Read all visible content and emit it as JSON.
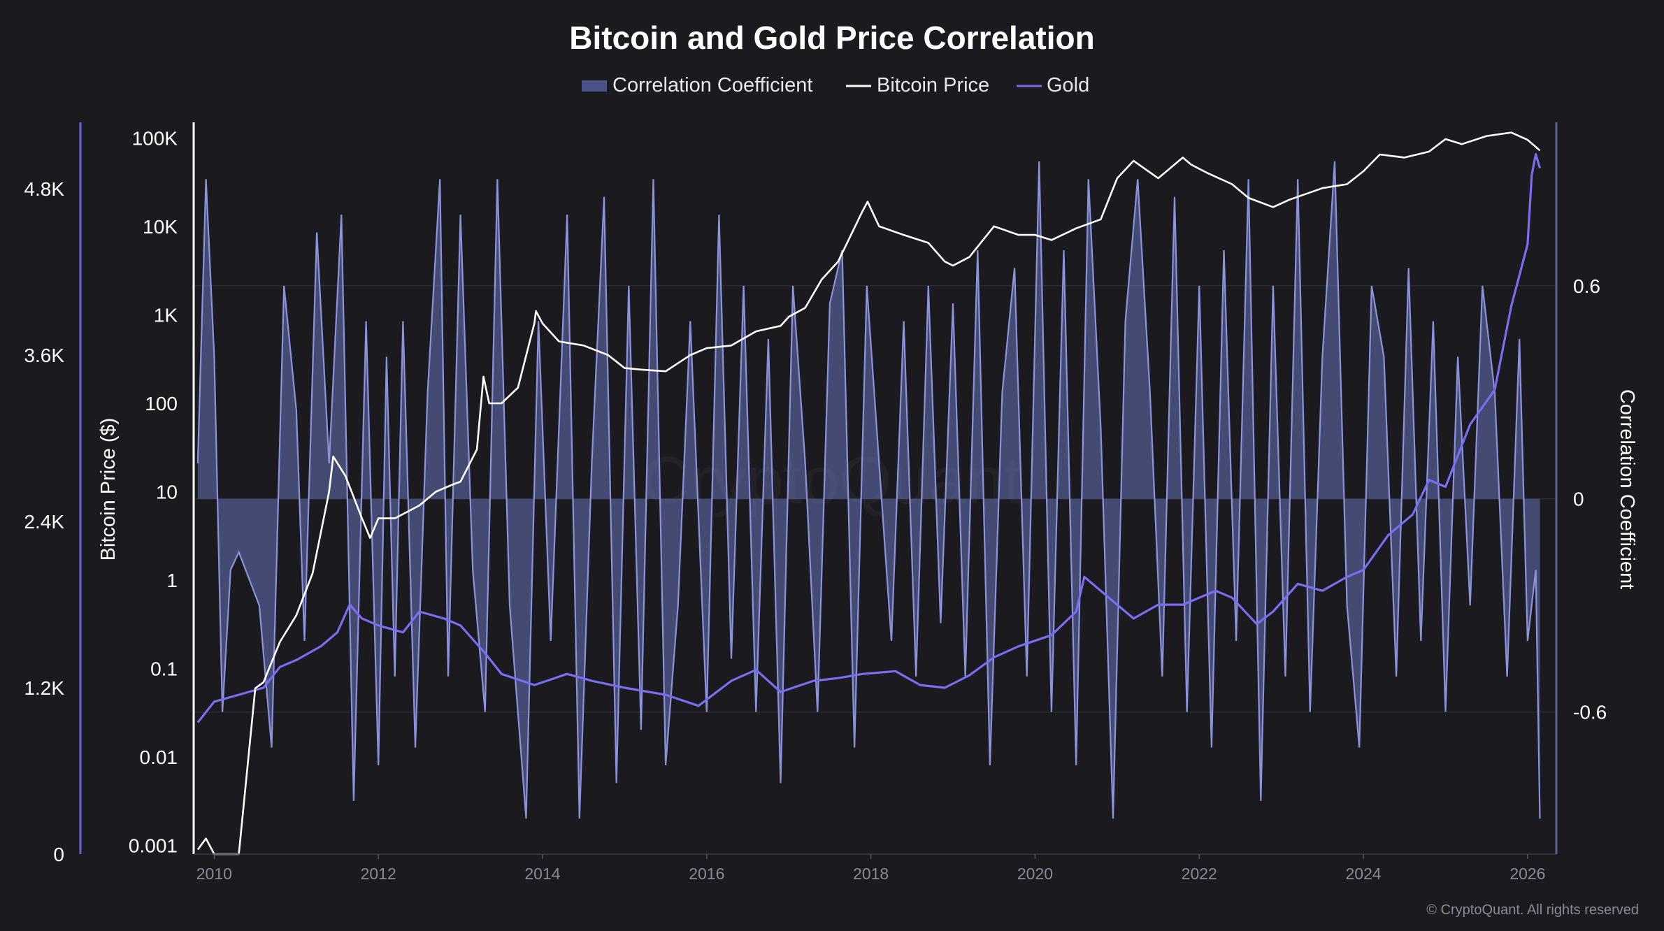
{
  "colors": {
    "background": "#1a1a1f",
    "correlation_fill": "#6a73b8",
    "correlation_line": "#8b93dc",
    "bitcoin": "#ffffff",
    "gold": "#7b6cf0",
    "grid": "#2a2a33",
    "right_axis": "#5b6290"
  },
  "chart_data": {
    "type": "line",
    "title": "Bitcoin and Gold Price Correlation",
    "legend": [
      "Correlation Coefficient",
      "Bitcoin Price",
      "Gold"
    ],
    "legend_placement": "top-center",
    "xlabel": "",
    "x_ticks": [
      "2010",
      "2012",
      "2014",
      "2016",
      "2018",
      "2020",
      "2022",
      "2024",
      "2026"
    ],
    "x_range": [
      2009.75,
      2026.35
    ],
    "left_axis": {
      "label": "Bitcoin Price ($)",
      "scale": "log",
      "range": [
        0.0008,
        150000
      ],
      "tick_values": [
        0.001,
        0.01,
        0.1,
        1,
        10,
        100,
        1000,
        10000,
        100000
      ],
      "tick_labels": [
        "0.001",
        "0.01",
        "0.1",
        "1",
        "10",
        "100",
        "1K",
        "10K",
        "100K"
      ]
    },
    "gold_axis": {
      "scale": "linear",
      "range": [
        0,
        5280
      ],
      "tick_values": [
        0,
        1200,
        2400,
        3600,
        4800
      ],
      "tick_labels": [
        "0",
        "1.2K",
        "2.4K",
        "3.6K",
        "4.8K"
      ]
    },
    "right_axis": {
      "label": "Correlation Coefficient",
      "range": [
        -1.0,
        1.06
      ],
      "tick_values": [
        -0.6,
        0,
        0.6
      ],
      "tick_labels": [
        "-0.6",
        "0",
        "0.6"
      ]
    },
    "series": [
      {
        "name": "Bitcoin Price",
        "axis": "left",
        "x": [
          2009.8,
          2009.9,
          2010.0,
          2010.1,
          2010.3,
          2010.5,
          2010.6,
          2010.8,
          2011.0,
          2011.2,
          2011.4,
          2011.45,
          2011.6,
          2011.8,
          2011.9,
          2012.0,
          2012.2,
          2012.5,
          2012.7,
          2012.9,
          2013.0,
          2013.2,
          2013.28,
          2013.35,
          2013.5,
          2013.7,
          2013.9,
          2013.92,
          2014.0,
          2014.2,
          2014.5,
          2014.8,
          2015.0,
          2015.2,
          2015.5,
          2015.8,
          2016.0,
          2016.3,
          2016.6,
          2016.9,
          2017.0,
          2017.2,
          2017.4,
          2017.6,
          2017.9,
          2017.96,
          2018.1,
          2018.4,
          2018.7,
          2018.9,
          2019.0,
          2019.2,
          2019.5,
          2019.8,
          2020.0,
          2020.2,
          2020.5,
          2020.8,
          2021.0,
          2021.2,
          2021.5,
          2021.8,
          2021.9,
          2022.1,
          2022.4,
          2022.6,
          2022.9,
          2023.1,
          2023.5,
          2023.8,
          2024.0,
          2024.2,
          2024.5,
          2024.8,
          2025.0,
          2025.2,
          2025.5,
          2025.8,
          2026.0,
          2026.15
        ],
        "values": [
          0.0009,
          0.0012,
          0.0008,
          0.0008,
          0.0008,
          0.06,
          0.07,
          0.2,
          0.4,
          1.2,
          10,
          25,
          15,
          5,
          3,
          5,
          5,
          7,
          10,
          12,
          13,
          30,
          200,
          100,
          100,
          150,
          800,
          1100,
          800,
          500,
          450,
          350,
          250,
          240,
          230,
          350,
          420,
          450,
          650,
          750,
          950,
          1200,
          2500,
          4000,
          15000,
          19000,
          10000,
          8000,
          6500,
          4000,
          3600,
          4500,
          10000,
          8000,
          8000,
          7000,
          9500,
          12000,
          35000,
          55000,
          35000,
          60000,
          50000,
          40000,
          30000,
          21000,
          16500,
          20000,
          27000,
          30000,
          42000,
          65000,
          60000,
          70000,
          97000,
          85000,
          105000,
          115000,
          95000,
          72000
        ]
      },
      {
        "name": "Gold",
        "axis": "gold",
        "x": [
          2009.8,
          2010.0,
          2010.3,
          2010.6,
          2010.8,
          2011.0,
          2011.3,
          2011.5,
          2011.65,
          2011.8,
          2012.0,
          2012.3,
          2012.5,
          2012.8,
          2013.0,
          2013.3,
          2013.5,
          2013.9,
          2014.3,
          2014.6,
          2015.0,
          2015.5,
          2015.9,
          2016.3,
          2016.6,
          2016.9,
          2017.3,
          2017.6,
          2017.9,
          2018.3,
          2018.6,
          2018.9,
          2019.2,
          2019.5,
          2019.8,
          2020.2,
          2020.5,
          2020.6,
          2020.9,
          2021.2,
          2021.5,
          2021.8,
          2022.2,
          2022.4,
          2022.7,
          2022.9,
          2023.2,
          2023.5,
          2023.8,
          2024.0,
          2024.3,
          2024.6,
          2024.8,
          2025.0,
          2025.3,
          2025.6,
          2025.8,
          2026.0,
          2026.05,
          2026.1,
          2026.15
        ],
        "values": [
          950,
          1100,
          1150,
          1200,
          1350,
          1400,
          1500,
          1600,
          1800,
          1700,
          1650,
          1600,
          1750,
          1700,
          1650,
          1450,
          1300,
          1220,
          1300,
          1250,
          1200,
          1150,
          1070,
          1250,
          1330,
          1170,
          1250,
          1270,
          1300,
          1320,
          1220,
          1200,
          1290,
          1420,
          1500,
          1580,
          1750,
          2000,
          1850,
          1700,
          1800,
          1800,
          1900,
          1850,
          1660,
          1750,
          1950,
          1900,
          2000,
          2050,
          2300,
          2450,
          2700,
          2650,
          3100,
          3350,
          3950,
          4400,
          4900,
          5050,
          4950
        ]
      },
      {
        "name": "Correlation Coefficient",
        "axis": "right",
        "x": [
          2009.8,
          2009.9,
          2010.0,
          2010.1,
          2010.2,
          2010.3,
          2010.55,
          2010.7,
          2010.85,
          2011.0,
          2011.1,
          2011.25,
          2011.4,
          2011.55,
          2011.7,
          2011.85,
          2012.0,
          2012.1,
          2012.2,
          2012.3,
          2012.45,
          2012.6,
          2012.75,
          2012.85,
          2013.0,
          2013.15,
          2013.3,
          2013.45,
          2013.6,
          2013.8,
          2013.95,
          2014.1,
          2014.3,
          2014.45,
          2014.6,
          2014.75,
          2014.9,
          2015.05,
          2015.2,
          2015.35,
          2015.5,
          2015.65,
          2015.8,
          2016.0,
          2016.15,
          2016.3,
          2016.45,
          2016.6,
          2016.75,
          2016.9,
          2017.05,
          2017.2,
          2017.35,
          2017.5,
          2017.65,
          2017.8,
          2017.95,
          2018.1,
          2018.25,
          2018.4,
          2018.55,
          2018.7,
          2018.85,
          2019.0,
          2019.15,
          2019.3,
          2019.45,
          2019.6,
          2019.75,
          2019.9,
          2020.05,
          2020.2,
          2020.35,
          2020.5,
          2020.65,
          2020.8,
          2020.95,
          2021.1,
          2021.25,
          2021.4,
          2021.55,
          2021.7,
          2021.85,
          2022.0,
          2022.15,
          2022.3,
          2022.45,
          2022.6,
          2022.75,
          2022.9,
          2023.05,
          2023.2,
          2023.35,
          2023.5,
          2023.65,
          2023.8,
          2023.95,
          2024.1,
          2024.25,
          2024.4,
          2024.55,
          2024.7,
          2024.85,
          2025.0,
          2025.15,
          2025.3,
          2025.45,
          2025.6,
          2025.75,
          2025.9,
          2026.0,
          2026.1,
          2026.15
        ],
        "values": [
          0.1,
          0.9,
          0.4,
          -0.6,
          -0.2,
          -0.15,
          -0.3,
          -0.7,
          0.6,
          0.25,
          -0.4,
          0.75,
          0.1,
          0.8,
          -0.85,
          0.5,
          -0.75,
          0.4,
          -0.5,
          0.5,
          -0.7,
          0.3,
          0.9,
          -0.5,
          0.8,
          -0.2,
          -0.6,
          0.9,
          -0.3,
          -0.9,
          0.5,
          -0.4,
          0.8,
          -0.9,
          0.1,
          0.85,
          -0.8,
          0.6,
          -0.65,
          0.9,
          -0.75,
          -0.3,
          0.5,
          -0.6,
          0.8,
          -0.45,
          0.6,
          -0.6,
          0.45,
          -0.8,
          0.6,
          0.1,
          -0.6,
          0.55,
          0.7,
          -0.7,
          0.6,
          0.1,
          -0.4,
          0.5,
          -0.5,
          0.6,
          -0.35,
          0.55,
          -0.5,
          0.7,
          -0.75,
          0.3,
          0.65,
          -0.5,
          0.95,
          -0.6,
          0.7,
          -0.75,
          0.9,
          0.2,
          -0.9,
          0.5,
          0.9,
          0.3,
          -0.5,
          0.85,
          -0.6,
          0.6,
          -0.7,
          0.7,
          -0.4,
          0.9,
          -0.85,
          0.6,
          -0.5,
          0.9,
          -0.6,
          0.4,
          0.95,
          -0.3,
          -0.7,
          0.6,
          0.4,
          -0.5,
          0.65,
          -0.4,
          0.5,
          -0.6,
          0.4,
          -0.3,
          0.6,
          0.3,
          -0.5,
          0.45,
          -0.4,
          -0.2,
          -0.9
        ]
      }
    ],
    "watermark": "CryptoQuant",
    "copyright": "© CryptoQuant. All rights reserved"
  }
}
